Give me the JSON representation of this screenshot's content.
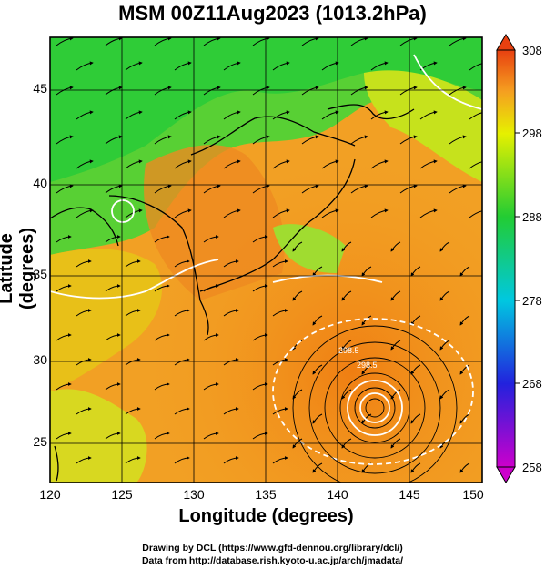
{
  "title": "MSM 00Z11Aug2023 (1013.2hPa)",
  "xlabel": "Longitude (degrees)",
  "ylabel": "Latitude  (degrees)",
  "x_ticks": [
    "120",
    "125",
    "130",
    "135",
    "140",
    "145",
    "150"
  ],
  "y_ticks": [
    "25",
    "30",
    "35",
    "40",
    "45"
  ],
  "colorbar_ticks": [
    "308",
    "298",
    "288",
    "278",
    "268",
    "258"
  ],
  "contour_labels": [
    "298.5",
    "298.5"
  ],
  "credit_line1": "Drawing by DCL (https://www.gfd-dennou.org/library/dcl/)",
  "credit_line2": "Data from http://database.rish.kyoto-u.ac.jp/arch/jmadata/",
  "map": {
    "lon_range": [
      120,
      150
    ],
    "lat_range": [
      22.5,
      47.6
    ],
    "variable": "temperature (K) with wind streamlines",
    "colorbar_range": [
      258,
      308
    ],
    "colors": {
      "cold": "#cc00cc",
      "blue": "#2222dd",
      "cyan": "#00c8e0",
      "green": "#22cc33",
      "yellow": "#e6f000",
      "orange": "#f5a020",
      "red": "#e84010"
    }
  }
}
